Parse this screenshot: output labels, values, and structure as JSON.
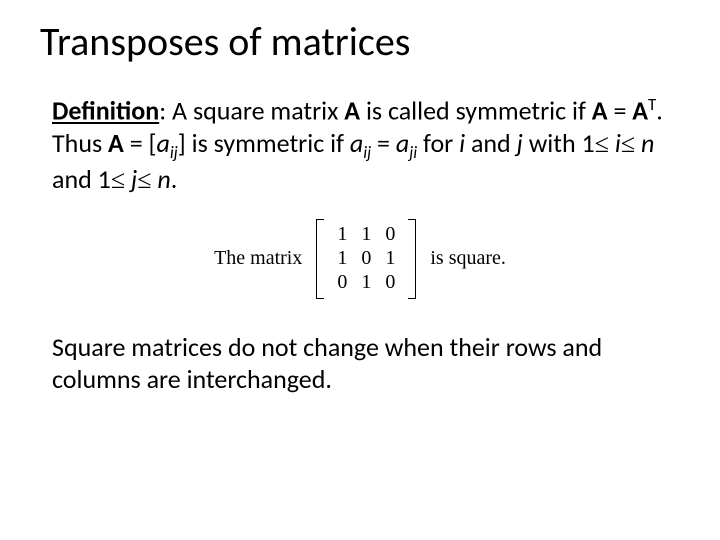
{
  "slide": {
    "title": "Transposes of matrices",
    "title_fontsize": 40,
    "body_fontsize": 26,
    "text_color": "#000000",
    "background_color": "#ffffff",
    "font_family": "Calibri"
  },
  "definition": {
    "label": "Definition",
    "part1": ": A square matrix ",
    "A": "A",
    "part2": "  is called symmetric if  ",
    "eq1_left": "A",
    "eq_sym": " = ",
    "eq1_right": "A",
    "superT": "T",
    "part3": ". Thus ",
    "part4": " = [",
    "a": "a",
    "sub_ij": "ij",
    "part5": "] is symmetric if  ",
    "sub_ji": "ji",
    "part6": " for ",
    "i": "i",
    "part7": " and ",
    "j": "j",
    "part8": " with  1",
    "leq": "≤",
    "space": " ",
    "n_var": "n",
    "part9": "  and 1",
    "part10": ".",
    "n_italic": "n"
  },
  "matrix_example": {
    "label_left": "The matrix",
    "label_right": "is square.",
    "rows": [
      [
        "1",
        "1",
        "0"
      ],
      [
        "1",
        "0",
        "1"
      ],
      [
        "0",
        "1",
        "0"
      ]
    ],
    "bracket_color": "#000000",
    "cell_fontsize": 20,
    "font_family": "Times New Roman"
  },
  "closing": {
    "text": "Square  matrices do not change when their rows and columns are interchanged."
  }
}
